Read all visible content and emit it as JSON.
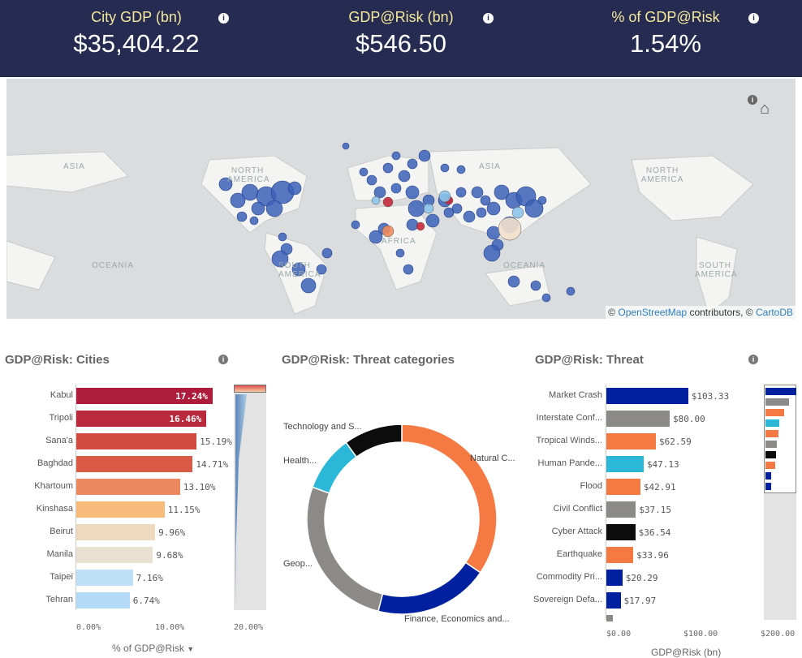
{
  "kpis": [
    {
      "label": "City GDP (bn)",
      "value": "$35,404.22"
    },
    {
      "label": "GDP@Risk (bn)",
      "value": "$546.50"
    },
    {
      "label": "% of GDP@Risk",
      "value": "1.54%"
    }
  ],
  "map": {
    "labels": [
      "ASIA",
      "NORTH AMERICA",
      "OCEANIA",
      "SOUTH AMERICA",
      "AFRICA",
      "ASIA",
      "OCEANIA",
      "NORTH AMERICA",
      "SOUTH AMERICA"
    ],
    "attribution_prefix": "© ",
    "osm": "OpenStreetMap",
    "contributors": " contributors, © ",
    "carto": "CartoDB"
  },
  "cities": {
    "title": "GDP@Risk: Cities",
    "rows": [
      {
        "label": "Kabul",
        "value": 17.24,
        "text": "17.24%",
        "color": "#ad1c3b"
      },
      {
        "label": "Tripoli",
        "value": 16.46,
        "text": "16.46%",
        "color": "#bb2a3c"
      },
      {
        "label": "Sana'a",
        "value": 15.19,
        "text": "15.19%",
        "color": "#d14b40"
      },
      {
        "label": "Baghdad",
        "value": 14.71,
        "text": "14.71%",
        "color": "#d95b45"
      },
      {
        "label": "Khartoum",
        "value": 13.1,
        "text": "13.10%",
        "color": "#ec895f"
      },
      {
        "label": "Kinshasa",
        "value": 11.15,
        "text": "11.15%",
        "color": "#f7bb7c"
      },
      {
        "label": "Beirut",
        "value": 9.96,
        "text": "9.96%",
        "color": "#eed9bf"
      },
      {
        "label": "Manila",
        "value": 9.68,
        "text": "9.68%",
        "color": "#ebe1d2"
      },
      {
        "label": "Taipei",
        "value": 7.16,
        "text": "7.16%",
        "color": "#bde0f7"
      },
      {
        "label": "Tehran",
        "value": 6.74,
        "text": "6.74%",
        "color": "#b3daf6"
      }
    ],
    "ticks": [
      "0.00%",
      "10.00%",
      "20.00%"
    ],
    "axis_label": "% of GDP@Risk"
  },
  "categories": {
    "title": "GDP@Risk: Threat categories",
    "slices": [
      {
        "label": "Natural C...",
        "share": 0.345,
        "color": "#f47942"
      },
      {
        "label": "Finance, Economics and...",
        "share": 0.195,
        "color": "#0020a0"
      },
      {
        "label": "Geop...",
        "share": 0.265,
        "color": "#8c8a88"
      },
      {
        "label": "Health...",
        "share": 0.095,
        "color": "#2bb8d8"
      },
      {
        "label": "Technology and S...",
        "share": 0.1,
        "color": "#0c0c0c"
      }
    ]
  },
  "threat": {
    "title": "GDP@Risk: Threat",
    "rows": [
      {
        "label": "Market Crash",
        "value": 103.33,
        "text": "$103.33",
        "color": "#0020a0"
      },
      {
        "label": "Interstate Conf...",
        "value": 80.0,
        "text": "$80.00",
        "color": "#8c8a88"
      },
      {
        "label": "Tropical Winds...",
        "value": 62.59,
        "text": "$62.59",
        "color": "#f47942"
      },
      {
        "label": "Human Pande...",
        "value": 47.13,
        "text": "$47.13",
        "color": "#2bb8d8"
      },
      {
        "label": "Flood",
        "value": 42.91,
        "text": "$42.91",
        "color": "#f47942"
      },
      {
        "label": "Civil Conflict",
        "value": 37.15,
        "text": "$37.15",
        "color": "#8c8a88"
      },
      {
        "label": "Cyber Attack",
        "value": 36.54,
        "text": "$36.54",
        "color": "#0c0c0c"
      },
      {
        "label": "Earthquake",
        "value": 33.96,
        "text": "$33.96",
        "color": "#f47942"
      },
      {
        "label": "Commodity Pri...",
        "value": 20.29,
        "text": "$20.29",
        "color": "#0020a0"
      },
      {
        "label": "Sovereign Defa...",
        "value": 17.97,
        "text": "$17.97",
        "color": "#0020a0"
      }
    ],
    "ticks": [
      "$0.00",
      "$100.00",
      "$200.00"
    ],
    "axis_label": "GDP@Risk (bn)"
  }
}
